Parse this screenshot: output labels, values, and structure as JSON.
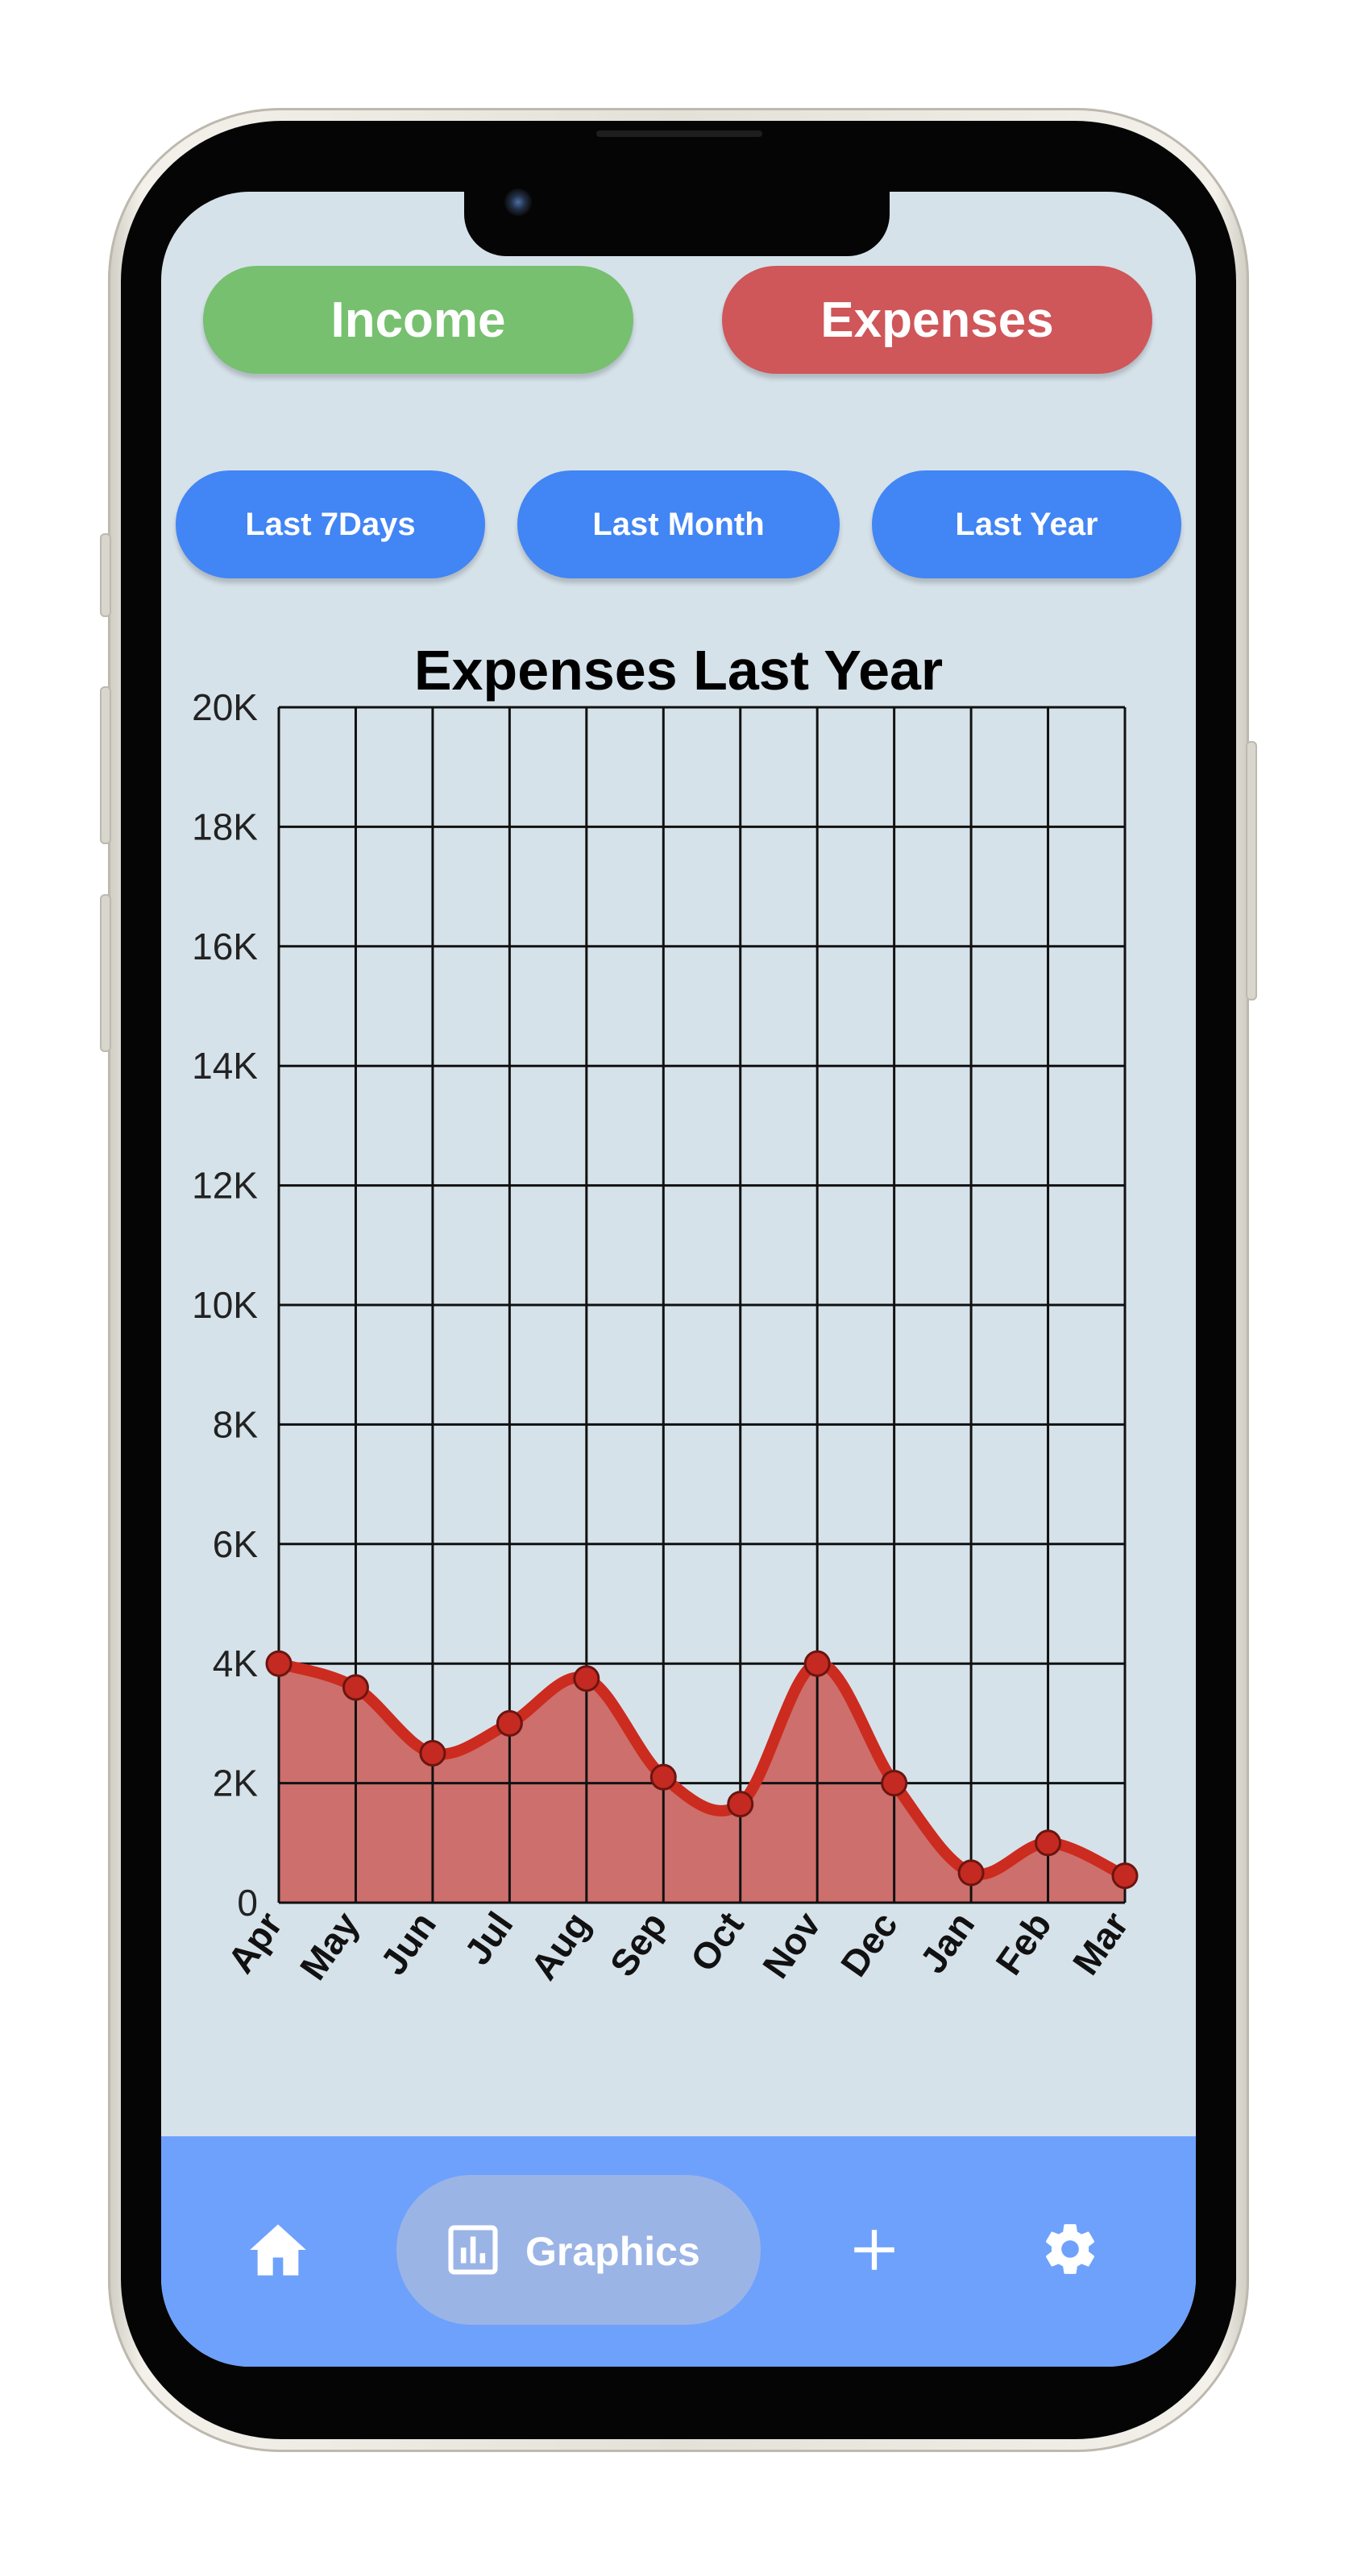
{
  "buttons": {
    "income": "Income",
    "expenses": "Expenses"
  },
  "periods": [
    "Last 7Days",
    "Last Month",
    "Last Year"
  ],
  "nav": {
    "items": [
      {
        "icon": "home-icon"
      },
      {
        "icon": "bar-chart-icon",
        "label": "Graphics"
      },
      {
        "icon": "plus-icon"
      },
      {
        "icon": "gear-icon"
      }
    ]
  },
  "colors": {
    "income": "#76c06f",
    "expenses": "#cf5659",
    "period_button": "#4285f4",
    "nav_bar": "#6ea1fc",
    "line": "#cc2b1f",
    "area": "#cd6f6c"
  },
  "chart_data": {
    "type": "area",
    "title": "Expenses Last Year",
    "categories": [
      "Apr",
      "May",
      "Jun",
      "Jul",
      "Aug",
      "Sep",
      "Oct",
      "Nov",
      "Dec",
      "Jan",
      "Feb",
      "Mar"
    ],
    "values": [
      4000,
      3600,
      2500,
      3000,
      3750,
      2100,
      1650,
      4000,
      2000,
      500,
      1000,
      450
    ],
    "ylim": [
      0,
      20000
    ],
    "yticks": [
      0,
      2000,
      4000,
      6000,
      8000,
      10000,
      12000,
      14000,
      16000,
      18000,
      20000
    ],
    "ytick_labels": [
      "0",
      "2K",
      "4K",
      "6K",
      "8K",
      "10K",
      "12K",
      "14K",
      "16K",
      "18K",
      "20K"
    ],
    "grid": true,
    "xlabel": "",
    "ylabel": ""
  }
}
